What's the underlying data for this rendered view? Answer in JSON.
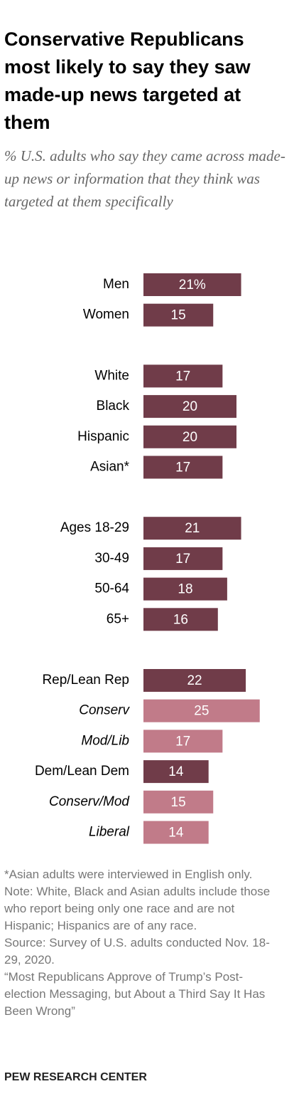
{
  "chart_data": {
    "type": "bar",
    "orientation": "horizontal",
    "title": "Conservative Republicans most likely to say they saw made-up news targeted at them",
    "subtitle": "% U.S. adults who say they came across made-up news or information that they think was targeted at them specifically",
    "categories": [
      "Men",
      "Women",
      "White",
      "Black",
      "Hispanic",
      "Asian*",
      "Ages 18-29",
      "30-49",
      "50-64",
      "65+",
      "Rep/Lean Rep",
      "Conserv",
      "Mod/Lib",
      "Dem/Lean Dem",
      "Conserv/Mod",
      "Liberal"
    ],
    "values": [
      21,
      15,
      17,
      20,
      20,
      17,
      21,
      17,
      18,
      16,
      22,
      25,
      17,
      14,
      15,
      14
    ],
    "value_labels": [
      "21%",
      "15",
      "17",
      "20",
      "20",
      "17",
      "21",
      "17",
      "18",
      "16",
      "22",
      "25",
      "17",
      "14",
      "15",
      "14"
    ],
    "colors": [
      "#703c49",
      "#703c49",
      "#703c49",
      "#703c49",
      "#703c49",
      "#703c49",
      "#703c49",
      "#703c49",
      "#703c49",
      "#703c49",
      "#703c49",
      "#c17b89",
      "#c17b89",
      "#703c49",
      "#c17b89",
      "#c17b89"
    ],
    "notes": [
      "*Asian adults were interviewed in English only.",
      "Note: White, Black and Asian adults include those who report being only one race and are not Hispanic; Hispanics are of any race.",
      "Source: Survey of U.S. adults conducted Nov. 18-29, 2020.",
      "“Most Republicans Approve of Trump’s Post-election Messaging, but About a Third Say It Has Been Wrong”"
    ],
    "source": "PEW RESEARCH CENTER"
  }
}
